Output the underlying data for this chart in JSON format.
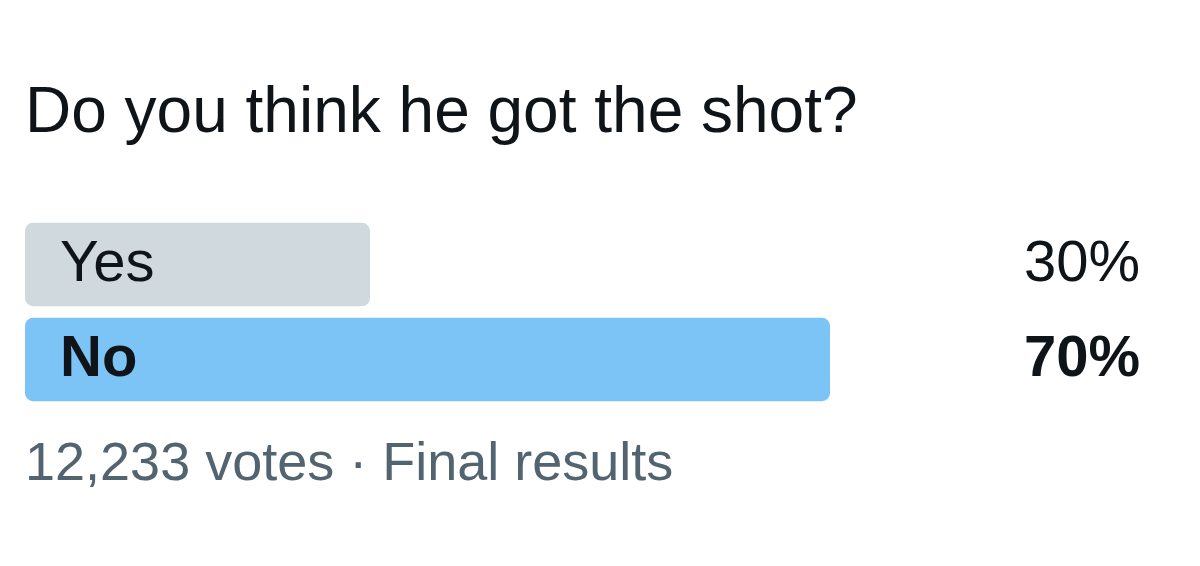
{
  "chart_data": {
    "type": "bar",
    "orientation": "horizontal",
    "title": "Do you think he got the shot?",
    "categories": [
      "Yes",
      "No"
    ],
    "values": [
      30,
      70
    ],
    "value_labels": [
      "30%",
      "70%"
    ],
    "colors": [
      "#cfd9de",
      "#7cc4f6"
    ],
    "tick_labels": "y",
    "annotations": [
      "12,233 votes · Final results"
    ]
  }
}
